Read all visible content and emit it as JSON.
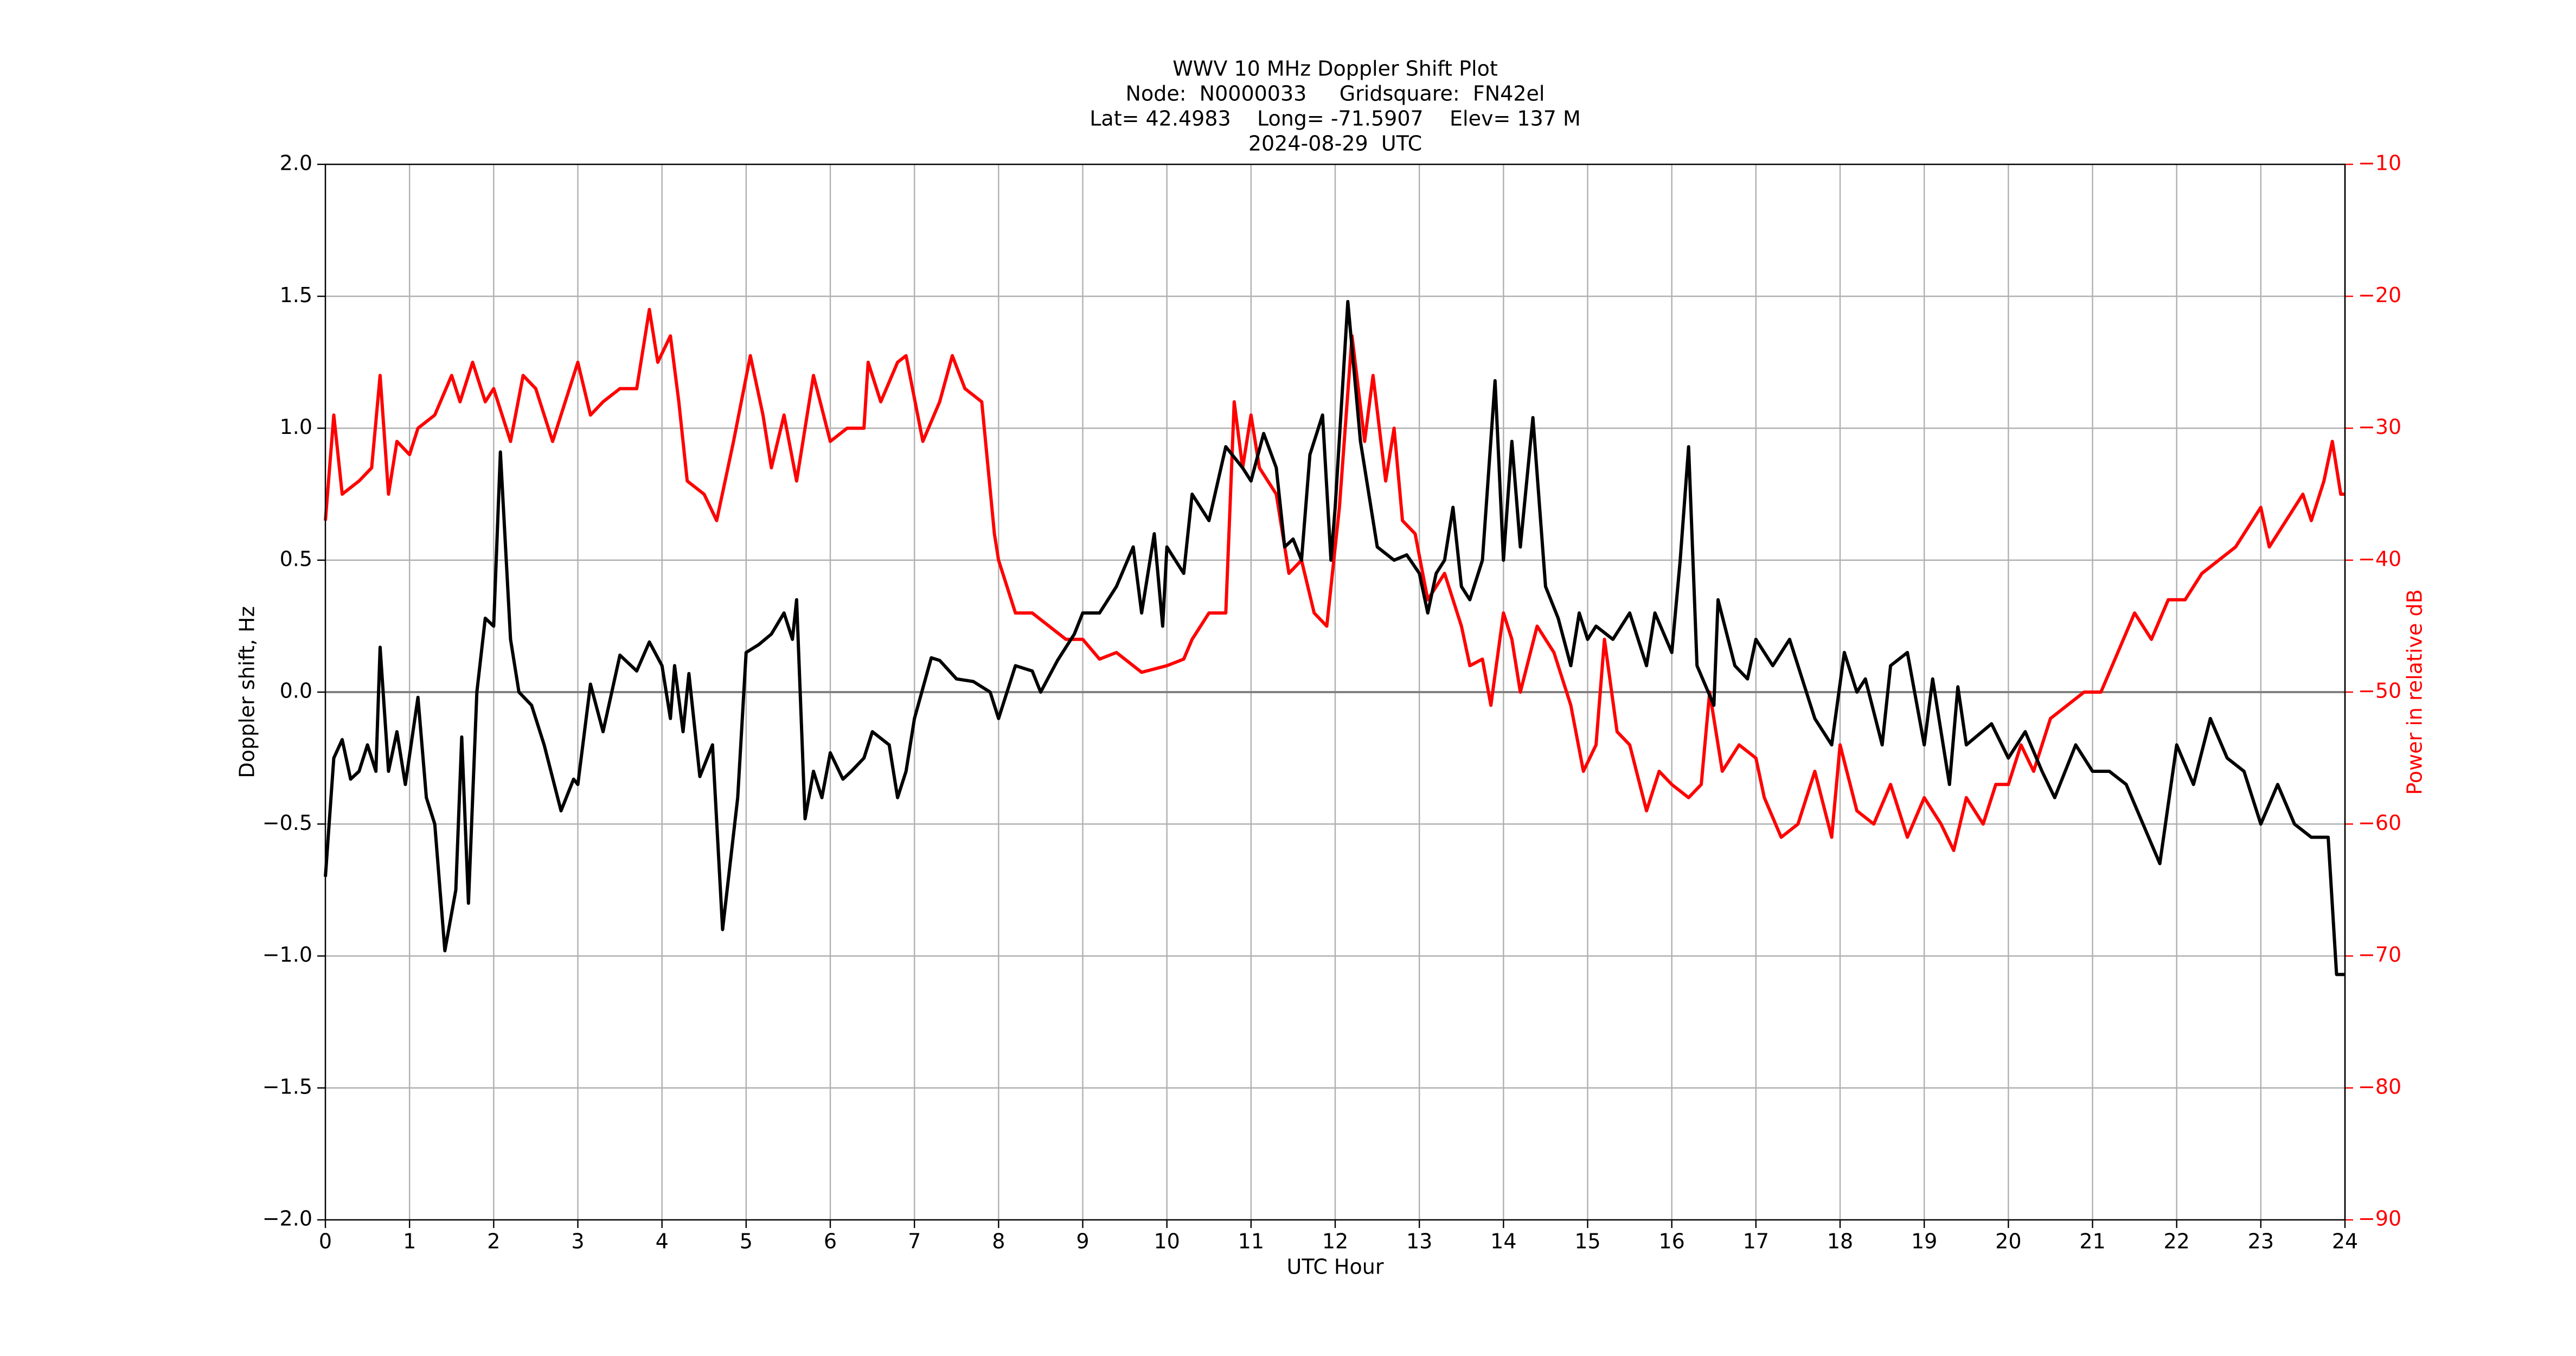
{
  "chart_data": {
    "type": "line",
    "title": [
      "WWV 10 MHz Doppler Shift Plot",
      "Node:  N0000033     Gridsquare:  FN42el",
      "Lat= 42.4983    Long= -71.5907    Elev= 137 M",
      "2024-08-29  UTC"
    ],
    "xlabel": "UTC Hour",
    "ylabel": "Doppler shift, Hz",
    "y2label": "Power in relative dB",
    "y2color": "#ff0000",
    "grid": true,
    "zero_line": true,
    "xlim": [
      0,
      24
    ],
    "xticks": [
      0,
      1,
      2,
      3,
      4,
      5,
      6,
      7,
      8,
      9,
      10,
      11,
      12,
      13,
      14,
      15,
      16,
      17,
      18,
      19,
      20,
      21,
      22,
      23,
      24
    ],
    "ylim": [
      -2,
      2
    ],
    "yticks": [
      {
        "value": -2,
        "label": "−2.0"
      },
      {
        "value": -1.5,
        "label": "−1.5"
      },
      {
        "value": -1,
        "label": "−1.0"
      },
      {
        "value": -0.5,
        "label": "−0.5"
      },
      {
        "value": 0,
        "label": "0.0"
      },
      {
        "value": 0.5,
        "label": "0.5"
      },
      {
        "value": 1,
        "label": "1.0"
      },
      {
        "value": 1.5,
        "label": "1.5"
      },
      {
        "value": 2,
        "label": "2.0"
      }
    ],
    "y2lim": [
      -90,
      -10
    ],
    "y2ticks": [
      {
        "value": -90,
        "label": "−90"
      },
      {
        "value": -80,
        "label": "−80"
      },
      {
        "value": -70,
        "label": "−70"
      },
      {
        "value": -60,
        "label": "−60"
      },
      {
        "value": -50,
        "label": "−50"
      },
      {
        "value": -40,
        "label": "−40"
      },
      {
        "value": -30,
        "label": "−30"
      },
      {
        "value": -20,
        "label": "−20"
      },
      {
        "value": -10,
        "label": "−10"
      }
    ],
    "series": [
      {
        "color": "#000000",
        "axis": "y",
        "x": [
          0,
          0.1,
          0.2,
          0.3,
          0.4,
          0.5,
          0.6,
          0.65,
          0.75,
          0.85,
          0.95,
          1.1,
          1.2,
          1.3,
          1.42,
          1.55,
          1.62,
          1.7,
          1.8,
          1.9,
          2.0,
          2.08,
          2.2,
          2.3,
          2.45,
          2.6,
          2.8,
          2.95,
          3.0,
          3.15,
          3.3,
          3.5,
          3.7,
          3.85,
          4.0,
          4.1,
          4.15,
          4.25,
          4.32,
          4.45,
          4.6,
          4.72,
          4.9,
          5.0,
          5.15,
          5.3,
          5.45,
          5.55,
          5.6,
          5.7,
          5.8,
          5.9,
          6.0,
          6.15,
          6.25,
          6.4,
          6.5,
          6.7,
          6.8,
          6.9,
          7.0,
          7.2,
          7.3,
          7.5,
          7.7,
          7.9,
          8.0,
          8.2,
          8.4,
          8.5,
          8.7,
          8.9,
          9.0,
          9.2,
          9.4,
          9.6,
          9.7,
          9.85,
          9.95,
          10.0,
          10.2,
          10.3,
          10.5,
          10.7,
          10.9,
          11.0,
          11.15,
          11.3,
          11.4,
          11.5,
          11.6,
          11.7,
          11.85,
          11.95,
          12.0,
          12.15,
          12.3,
          12.5,
          12.7,
          12.85,
          13.0,
          13.1,
          13.2,
          13.3,
          13.4,
          13.5,
          13.6,
          13.75,
          13.9,
          14.0,
          14.1,
          14.2,
          14.35,
          14.5,
          14.65,
          14.8,
          14.9,
          15.0,
          15.1,
          15.3,
          15.5,
          15.7,
          15.8,
          16.0,
          16.1,
          16.2,
          16.3,
          16.5,
          16.55,
          16.75,
          16.9,
          17.0,
          17.2,
          17.4,
          17.5,
          17.7,
          17.9,
          18.05,
          18.2,
          18.3,
          18.5,
          18.6,
          18.8,
          19.0,
          19.1,
          19.3,
          19.4,
          19.5,
          19.8,
          20.0,
          20.2,
          20.4,
          20.55,
          20.8,
          21.0,
          21.2,
          21.4,
          21.6,
          21.8,
          22.0,
          22.2,
          22.4,
          22.6,
          22.8,
          23.0,
          23.2,
          23.4,
          23.6,
          23.8,
          23.9,
          24.0
        ],
        "values": [
          -0.7,
          -0.25,
          -0.18,
          -0.33,
          -0.3,
          -0.2,
          -0.3,
          0.17,
          -0.3,
          -0.15,
          -0.35,
          -0.02,
          -0.4,
          -0.5,
          -0.98,
          -0.75,
          -0.17,
          -0.8,
          0.0,
          0.28,
          0.25,
          0.91,
          0.2,
          0.0,
          -0.05,
          -0.2,
          -0.45,
          -0.33,
          -0.35,
          0.03,
          -0.15,
          0.14,
          0.08,
          0.19,
          0.1,
          -0.1,
          0.1,
          -0.15,
          0.07,
          -0.32,
          -0.2,
          -0.9,
          -0.4,
          0.15,
          0.18,
          0.22,
          0.3,
          0.2,
          0.35,
          -0.48,
          -0.3,
          -0.4,
          -0.23,
          -0.33,
          -0.3,
          -0.25,
          -0.15,
          -0.2,
          -0.4,
          -0.3,
          -0.1,
          0.13,
          0.12,
          0.05,
          0.04,
          0.0,
          -0.1,
          0.1,
          0.08,
          0.0,
          0.12,
          0.22,
          0.3,
          0.3,
          0.4,
          0.55,
          0.3,
          0.6,
          0.25,
          0.55,
          0.45,
          0.75,
          0.65,
          0.93,
          0.85,
          0.8,
          0.98,
          0.85,
          0.55,
          0.58,
          0.5,
          0.9,
          1.05,
          0.5,
          0.7,
          1.48,
          0.95,
          0.55,
          0.5,
          0.52,
          0.45,
          0.3,
          0.45,
          0.5,
          0.7,
          0.4,
          0.35,
          0.5,
          1.18,
          0.5,
          0.95,
          0.55,
          1.04,
          0.4,
          0.28,
          0.1,
          0.3,
          0.2,
          0.25,
          0.2,
          0.3,
          0.1,
          0.3,
          0.15,
          0.5,
          0.93,
          0.1,
          -0.05,
          0.35,
          0.1,
          0.05,
          0.2,
          0.1,
          0.2,
          0.1,
          -0.1,
          -0.2,
          0.15,
          0.0,
          0.05,
          -0.2,
          0.1,
          0.15,
          -0.2,
          0.05,
          -0.35,
          0.02,
          -0.2,
          -0.12,
          -0.25,
          -0.15,
          -0.3,
          -0.4,
          -0.2,
          -0.3,
          -0.3,
          -0.35,
          -0.5,
          -0.65,
          -0.2,
          -0.35,
          -0.1,
          -0.25,
          -0.3,
          -0.5,
          -0.35,
          -0.5,
          -0.55,
          -0.55,
          -1.07,
          -1.07
        ]
      },
      {
        "color": "#ff0000",
        "axis": "y2",
        "x": [
          0,
          0.1,
          0.2,
          0.4,
          0.55,
          0.65,
          0.75,
          0.85,
          1.0,
          1.1,
          1.3,
          1.5,
          1.6,
          1.75,
          1.9,
          2.0,
          2.2,
          2.35,
          2.5,
          2.7,
          2.9,
          3.0,
          3.15,
          3.3,
          3.5,
          3.7,
          3.85,
          3.95,
          4.1,
          4.2,
          4.3,
          4.5,
          4.65,
          4.85,
          5.05,
          5.2,
          5.3,
          5.45,
          5.6,
          5.8,
          6.0,
          6.2,
          6.4,
          6.45,
          6.6,
          6.8,
          6.9,
          7.1,
          7.3,
          7.45,
          7.6,
          7.8,
          7.95,
          8.0,
          8.2,
          8.4,
          8.6,
          8.8,
          9.0,
          9.2,
          9.4,
          9.7,
          10.0,
          10.2,
          10.3,
          10.5,
          10.7,
          10.8,
          10.9,
          11.0,
          11.1,
          11.3,
          11.45,
          11.6,
          11.75,
          11.9,
          12.05,
          12.2,
          12.35,
          12.45,
          12.6,
          12.7,
          12.8,
          12.95,
          13.1,
          13.3,
          13.5,
          13.6,
          13.75,
          13.85,
          14.0,
          14.1,
          14.2,
          14.4,
          14.6,
          14.8,
          14.95,
          15.1,
          15.2,
          15.35,
          15.5,
          15.7,
          15.85,
          16.0,
          16.2,
          16.35,
          16.45,
          16.6,
          16.8,
          17.0,
          17.1,
          17.3,
          17.5,
          17.7,
          17.9,
          18.0,
          18.2,
          18.4,
          18.6,
          18.8,
          19.0,
          19.2,
          19.35,
          19.5,
          19.7,
          19.85,
          20.0,
          20.15,
          20.3,
          20.5,
          20.7,
          20.9,
          21.1,
          21.3,
          21.5,
          21.7,
          21.9,
          22.1,
          22.3,
          22.5,
          22.7,
          22.9,
          23.0,
          23.1,
          23.3,
          23.5,
          23.6,
          23.75,
          23.85,
          23.95,
          24.0
        ],
        "values": [
          -37,
          -29,
          -35,
          -34,
          -33,
          -26,
          -35,
          -31,
          -32,
          -30,
          -29,
          -26,
          -28,
          -25,
          -28,
          -27,
          -31,
          -26,
          -27,
          -31,
          -27,
          -25,
          -29,
          -28,
          -27,
          -27,
          -21,
          -25,
          -23,
          -28,
          -34,
          -35,
          -37,
          -31,
          -24.5,
          -29,
          -33,
          -29,
          -34,
          -26,
          -31,
          -30,
          -30,
          -25,
          -28,
          -25,
          -24.5,
          -31,
          -28,
          -24.5,
          -27,
          -28,
          -38,
          -40,
          -44,
          -44,
          -45,
          -46,
          -46,
          -47.5,
          -47,
          -48.5,
          -48,
          -47.5,
          -46,
          -44,
          -44,
          -28,
          -33,
          -29,
          -33,
          -35,
          -41,
          -40,
          -44,
          -45,
          -36,
          -23,
          -31,
          -26,
          -34,
          -30,
          -37,
          -38,
          -43,
          -41,
          -45,
          -48,
          -47.5,
          -51,
          -44,
          -46,
          -50,
          -45,
          -47,
          -51,
          -56,
          -54,
          -46,
          -53,
          -54,
          -59,
          -56,
          -57,
          -58,
          -57,
          -50,
          -56,
          -54,
          -55,
          -58,
          -61,
          -60,
          -56,
          -61,
          -54,
          -59,
          -60,
          -57,
          -61,
          -58,
          -60,
          -62,
          -58,
          -60,
          -57,
          -57,
          -54,
          -56,
          -52,
          -51,
          -50,
          -50,
          -47,
          -44,
          -46,
          -43,
          -43,
          -41,
          -40,
          -39,
          -37,
          -36,
          -39,
          -37,
          -35,
          -37,
          -34,
          -31,
          -35,
          -35
        ]
      }
    ]
  }
}
